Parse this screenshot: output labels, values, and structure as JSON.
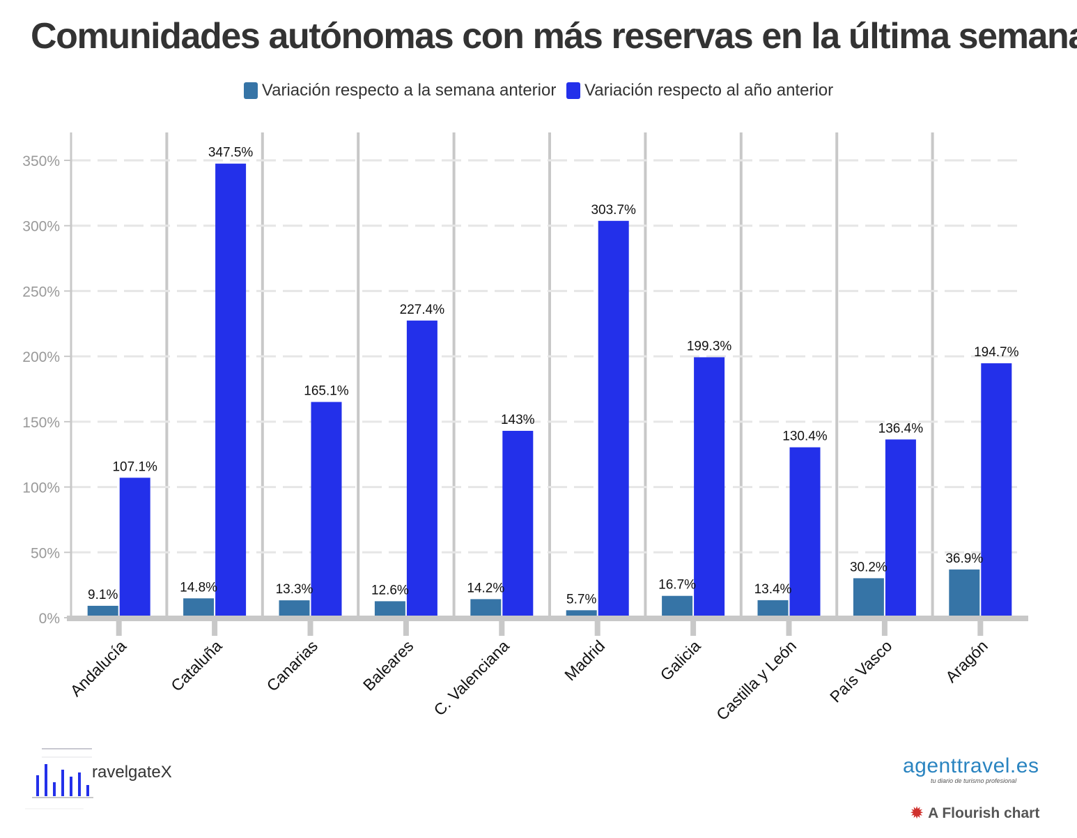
{
  "title": "Comunidades autónomas con más reservas en la última semana",
  "source_text": "ravelgateX",
  "brand": {
    "name": "agenttravel.es",
    "tagline": "tu diario de turismo profesional"
  },
  "credit": "A Flourish chart",
  "colors": {
    "series_week": "#3674a6",
    "series_year": "#2330ea",
    "grid": "#e6e6e6",
    "axis": "#c8c8c8",
    "text": "#333333",
    "tick": "#999999"
  },
  "chart_data": {
    "type": "bar",
    "categories": [
      "Andalucía",
      "Cataluña",
      "Canarias",
      "Baleares",
      "C. Valenciana",
      "Madrid",
      "Galicia",
      "Castilla y León",
      "País Vasco",
      "Aragón"
    ],
    "series": [
      {
        "name": "Variación respecto a la semana anterior",
        "values": [
          9.1,
          14.8,
          13.3,
          12.6,
          14.2,
          5.7,
          16.7,
          13.4,
          30.2,
          36.9
        ],
        "labels": [
          "9.1%",
          "14.8%",
          "13.3%",
          "12.6%",
          "14.2%",
          "5.7%",
          "16.7%",
          "13.4%",
          "30.2%",
          "36.9%"
        ]
      },
      {
        "name": "Variación respecto al año anterior",
        "values": [
          107.1,
          347.5,
          165.1,
          227.4,
          143,
          303.7,
          199.3,
          130.4,
          136.4,
          194.7
        ],
        "labels": [
          "107.1%",
          "347.5%",
          "165.1%",
          "227.4%",
          "143%",
          "303.7%",
          "199.3%",
          "130.4%",
          "136.4%",
          "194.7%"
        ]
      }
    ],
    "y_ticks": [
      0,
      50,
      100,
      150,
      200,
      250,
      300,
      350
    ],
    "y_tick_labels": [
      "0%",
      "50%",
      "100%",
      "150%",
      "200%",
      "250%",
      "300%",
      "350%"
    ],
    "ylim": [
      0,
      375
    ],
    "grid": true,
    "legend": "top-center"
  }
}
